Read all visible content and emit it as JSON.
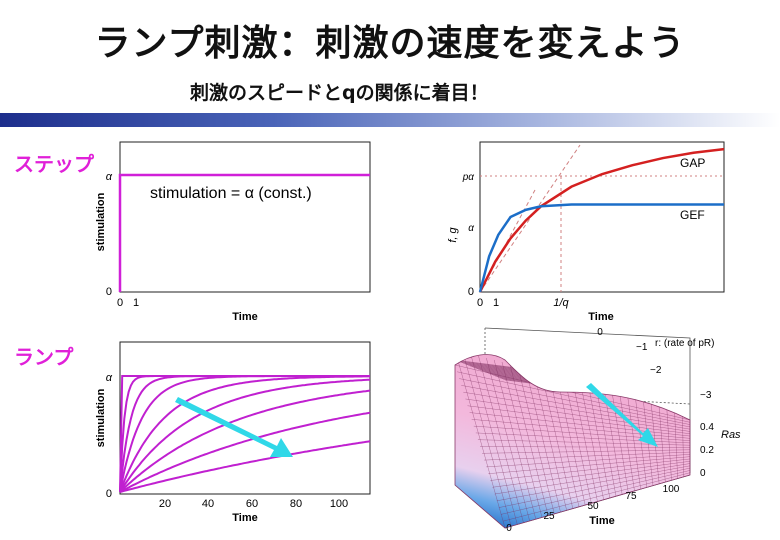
{
  "slide": {
    "title": "ランプ刺激：刺激の速度を変えよう",
    "subtitle": "刺激のスピードとqの関係に着目！",
    "label_step": "ステップ",
    "label_ramp": "ランプ"
  },
  "chart_data": [
    {
      "id": "step-plot",
      "type": "line",
      "xlabel": "Time",
      "ylabel": "stimulation",
      "xticks": [
        "0",
        "1"
      ],
      "yticks": [
        "0",
        "α"
      ],
      "annotation": "stimulation = α    (const.)",
      "series": [
        {
          "x": [
            0,
            0,
            8
          ],
          "y": [
            0,
            1,
            1
          ]
        }
      ],
      "colors": {
        "line": "#d020d8"
      }
    },
    {
      "id": "response-plot",
      "type": "line",
      "xlabel": "Time",
      "ylabel": "f, g",
      "xticks": [
        "0",
        "1",
        "1/q"
      ],
      "yticks": [
        "0",
        "α",
        "pα"
      ],
      "series": [
        {
          "name": "GAP",
          "x": [
            0,
            0.5,
            1,
            1.5,
            2,
            3,
            4,
            5,
            6,
            7,
            8
          ],
          "y": [
            0,
            0.85,
            1.5,
            2.0,
            2.4,
            2.95,
            3.3,
            3.55,
            3.75,
            3.9,
            4.0
          ]
        },
        {
          "name": "GEF",
          "x": [
            0,
            0.3,
            0.6,
            1,
            1.5,
            2,
            3,
            4,
            6,
            8
          ],
          "y": [
            0,
            1.0,
            1.6,
            2.1,
            2.3,
            2.4,
            2.45,
            2.45,
            2.45,
            2.45
          ]
        }
      ],
      "colors": {
        "GAP": "#d42020",
        "GEF": "#1c6ec8",
        "guide": "#d08080"
      }
    },
    {
      "id": "ramp-plot",
      "type": "line",
      "xlabel": "Time",
      "ylabel": "stimulation",
      "xticks": [
        "20",
        "40",
        "60",
        "80",
        "100"
      ],
      "yticks": [
        "0",
        "α"
      ],
      "xlim": [
        0,
        115
      ],
      "series_rates": [
        1000,
        0.5,
        0.2,
        0.1,
        0.05,
        0.03,
        0.018,
        0.01,
        0.005
      ],
      "colors": {
        "line": "#c020d0",
        "arrow": "#30d8e8"
      }
    },
    {
      "id": "surface-plot",
      "type": "heatmap",
      "xlabel": "Time",
      "ylabel": "Ras",
      "zlabel": "r: (rate of pR)",
      "time_ticks": [
        "0",
        "25",
        "50",
        "75",
        "100"
      ],
      "rate_ticks": [
        "0",
        "−1",
        "−2",
        "−3"
      ],
      "ras_ticks": [
        "0",
        "0.2",
        "0.4"
      ],
      "colors": {
        "high": "#f3b8dc",
        "low": "#1060c0",
        "grid": "#7a2a5a",
        "arrow": "#30d8e8"
      }
    }
  ]
}
